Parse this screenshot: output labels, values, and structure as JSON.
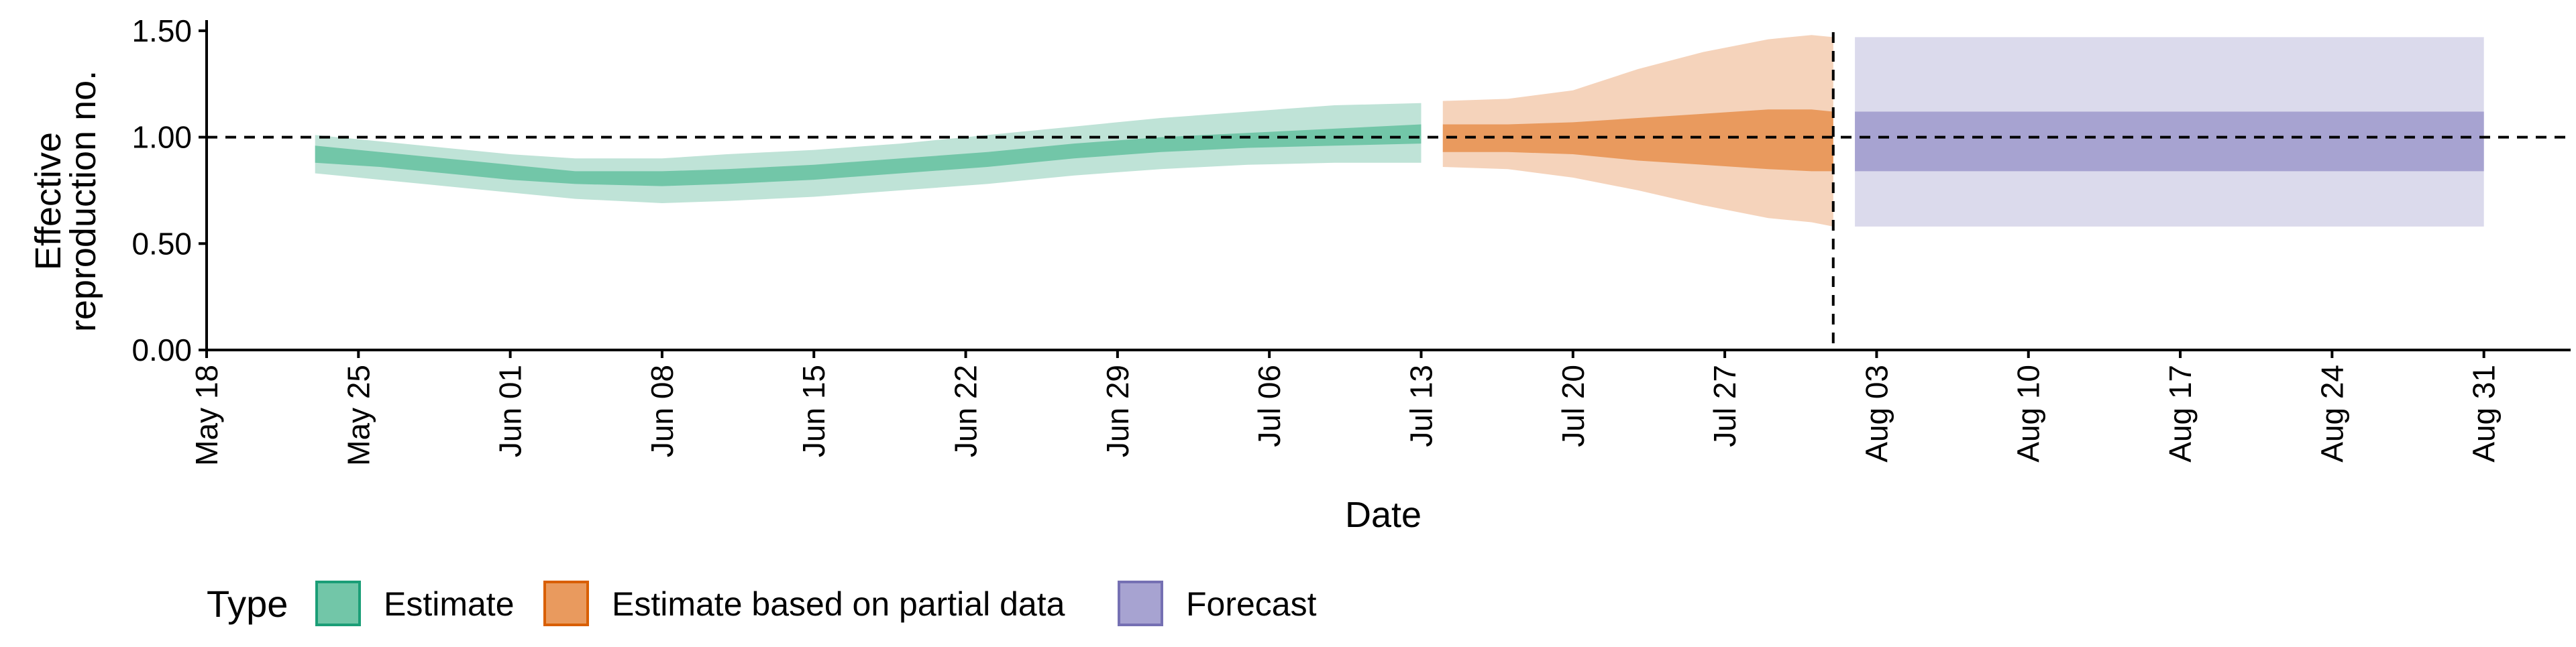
{
  "chart_data": {
    "type": "area",
    "xlabel": "Date",
    "ylabel_lines": [
      "Effective",
      "reproduction no."
    ],
    "x_range": [
      "2020-05-18",
      "2020-09-04"
    ],
    "ylim": [
      0,
      1.55
    ],
    "yticks": [
      0,
      0.5,
      1.0,
      1.5
    ],
    "ytick_labels": [
      "0.00",
      "0.50",
      "1.00",
      "1.50"
    ],
    "xticks": [
      "2020-05-18",
      "2020-05-25",
      "2020-06-01",
      "2020-06-08",
      "2020-06-15",
      "2020-06-22",
      "2020-06-29",
      "2020-07-06",
      "2020-07-13",
      "2020-07-20",
      "2020-07-27",
      "2020-08-03",
      "2020-08-10",
      "2020-08-17",
      "2020-08-24",
      "2020-08-31"
    ],
    "xtick_labels": [
      "May 18",
      "May 25",
      "Jun 01",
      "Jun 08",
      "Jun 15",
      "Jun 22",
      "Jun 29",
      "Jul 06",
      "Jul 13",
      "Jul 20",
      "Jul 27",
      "Aug 03",
      "Aug 10",
      "Aug 17",
      "Aug 24",
      "Aug 31"
    ],
    "reference_line_y": 1.0,
    "forecast_start_line_x": "2020-08-01",
    "grid": false,
    "legend": {
      "title": "Type",
      "position": "bottom-left",
      "entries": [
        {
          "label": "Estimate",
          "fill": "#72c6a8",
          "stroke": "#1b9e77"
        },
        {
          "label": "Estimate based on partial data",
          "fill": "#e99a5e",
          "stroke": "#d95f02"
        },
        {
          "label": "Forecast",
          "fill": "#a7a3d1",
          "stroke": "#7570b3"
        }
      ]
    },
    "series": [
      {
        "name": "Estimate",
        "outer_color": "#bfe3d7",
        "inner_color": "#72c6a8",
        "points": [
          {
            "x": "2020-05-23",
            "lo90": 0.83,
            "lo50": 0.88,
            "hi50": 0.96,
            "hi90": 1.01
          },
          {
            "x": "2020-05-26",
            "lo90": 0.8,
            "lo50": 0.86,
            "hi50": 0.93,
            "hi90": 0.98
          },
          {
            "x": "2020-05-29",
            "lo90": 0.77,
            "lo50": 0.83,
            "hi50": 0.9,
            "hi90": 0.95
          },
          {
            "x": "2020-06-01",
            "lo90": 0.74,
            "lo50": 0.8,
            "hi50": 0.87,
            "hi90": 0.92
          },
          {
            "x": "2020-06-04",
            "lo90": 0.71,
            "lo50": 0.78,
            "hi50": 0.84,
            "hi90": 0.9
          },
          {
            "x": "2020-06-08",
            "lo90": 0.69,
            "lo50": 0.77,
            "hi50": 0.84,
            "hi90": 0.9
          },
          {
            "x": "2020-06-11",
            "lo90": 0.7,
            "lo50": 0.78,
            "hi50": 0.85,
            "hi90": 0.92
          },
          {
            "x": "2020-06-15",
            "lo90": 0.72,
            "lo50": 0.8,
            "hi50": 0.87,
            "hi90": 0.94
          },
          {
            "x": "2020-06-19",
            "lo90": 0.75,
            "lo50": 0.83,
            "hi50": 0.9,
            "hi90": 0.97
          },
          {
            "x": "2020-06-23",
            "lo90": 0.78,
            "lo50": 0.86,
            "hi50": 0.93,
            "hi90": 1.01
          },
          {
            "x": "2020-06-27",
            "lo90": 0.82,
            "lo50": 0.9,
            "hi50": 0.97,
            "hi90": 1.05
          },
          {
            "x": "2020-07-01",
            "lo90": 0.85,
            "lo50": 0.93,
            "hi50": 1.0,
            "hi90": 1.09
          },
          {
            "x": "2020-07-05",
            "lo90": 0.87,
            "lo50": 0.95,
            "hi50": 1.02,
            "hi90": 1.12
          },
          {
            "x": "2020-07-09",
            "lo90": 0.88,
            "lo50": 0.96,
            "hi50": 1.04,
            "hi90": 1.15
          },
          {
            "x": "2020-07-13",
            "lo90": 0.88,
            "lo50": 0.97,
            "hi50": 1.06,
            "hi90": 1.16
          }
        ]
      },
      {
        "name": "Estimate based on partial data",
        "outer_color": "#f5d3bb",
        "inner_color": "#e99a5e",
        "points": [
          {
            "x": "2020-07-14",
            "lo90": 0.86,
            "lo50": 0.93,
            "hi50": 1.06,
            "hi90": 1.17
          },
          {
            "x": "2020-07-17",
            "lo90": 0.85,
            "lo50": 0.93,
            "hi50": 1.06,
            "hi90": 1.18
          },
          {
            "x": "2020-07-20",
            "lo90": 0.81,
            "lo50": 0.92,
            "hi50": 1.07,
            "hi90": 1.22
          },
          {
            "x": "2020-07-23",
            "lo90": 0.75,
            "lo50": 0.89,
            "hi50": 1.09,
            "hi90": 1.32
          },
          {
            "x": "2020-07-26",
            "lo90": 0.68,
            "lo50": 0.87,
            "hi50": 1.11,
            "hi90": 1.4
          },
          {
            "x": "2020-07-29",
            "lo90": 0.62,
            "lo50": 0.85,
            "hi50": 1.13,
            "hi90": 1.46
          },
          {
            "x": "2020-07-31",
            "lo90": 0.6,
            "lo50": 0.84,
            "hi50": 1.13,
            "hi90": 1.48
          },
          {
            "x": "2020-08-01",
            "lo90": 0.58,
            "lo50": 0.84,
            "hi50": 1.12,
            "hi90": 1.47
          }
        ]
      },
      {
        "name": "Forecast",
        "outer_color": "#dbdaec",
        "inner_color": "#a7a3d1",
        "points": [
          {
            "x": "2020-08-02",
            "lo90": 0.58,
            "lo50": 0.84,
            "hi50": 1.12,
            "hi90": 1.47
          },
          {
            "x": "2020-08-31",
            "lo90": 0.58,
            "lo50": 0.84,
            "hi50": 1.12,
            "hi90": 1.47
          }
        ]
      }
    ]
  }
}
